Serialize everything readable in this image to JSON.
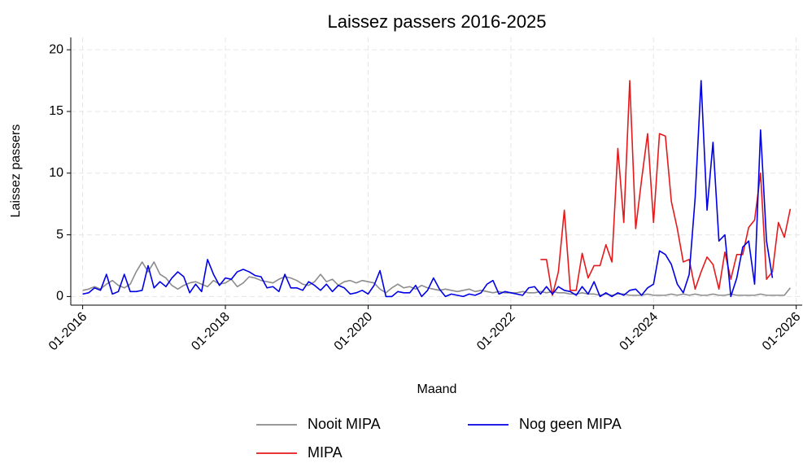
{
  "chart_data": {
    "type": "line",
    "title": "Laissez passers 2016-2025",
    "x_label": "Maand",
    "y_label": "Laissez passers",
    "x": [
      "01-2016",
      "02-2016",
      "03-2016",
      "04-2016",
      "05-2016",
      "06-2016",
      "07-2016",
      "08-2016",
      "09-2016",
      "10-2016",
      "11-2016",
      "12-2016",
      "01-2017",
      "02-2017",
      "03-2017",
      "04-2017",
      "05-2017",
      "06-2017",
      "07-2017",
      "08-2017",
      "09-2017",
      "10-2017",
      "11-2017",
      "12-2017",
      "01-2018",
      "02-2018",
      "03-2018",
      "04-2018",
      "05-2018",
      "06-2018",
      "07-2018",
      "08-2018",
      "09-2018",
      "10-2018",
      "11-2018",
      "12-2018",
      "01-2019",
      "02-2019",
      "03-2019",
      "04-2019",
      "05-2019",
      "06-2019",
      "07-2019",
      "08-2019",
      "09-2019",
      "10-2019",
      "11-2019",
      "12-2019",
      "01-2020",
      "02-2020",
      "03-2020",
      "04-2020",
      "05-2020",
      "06-2020",
      "07-2020",
      "08-2020",
      "09-2020",
      "10-2020",
      "11-2020",
      "12-2020",
      "01-2021",
      "02-2021",
      "03-2021",
      "04-2021",
      "05-2021",
      "06-2021",
      "07-2021",
      "08-2021",
      "09-2021",
      "10-2021",
      "11-2021",
      "12-2021",
      "01-2022",
      "02-2022",
      "03-2022",
      "04-2022",
      "05-2022",
      "06-2022",
      "07-2022",
      "08-2022",
      "09-2022",
      "10-2022",
      "11-2022",
      "12-2022",
      "01-2023",
      "02-2023",
      "03-2023",
      "04-2023",
      "05-2023",
      "06-2023",
      "07-2023",
      "08-2023",
      "09-2023",
      "10-2023",
      "11-2023",
      "12-2023",
      "01-2024",
      "02-2024",
      "03-2024",
      "04-2024",
      "05-2024",
      "06-2024",
      "07-2024",
      "08-2024",
      "09-2024",
      "10-2024",
      "11-2024",
      "12-2024",
      "01-2025",
      "02-2025",
      "03-2025",
      "04-2025",
      "05-2025",
      "06-2025",
      "07-2025",
      "08-2025",
      "09-2025",
      "10-2025",
      "11-2025",
      "12-2025"
    ],
    "series": [
      {
        "name": "Nooit MIPA",
        "color": "#8c8c8c",
        "values": [
          0.5,
          0.6,
          0.8,
          0.6,
          1.0,
          1.3,
          0.9,
          0.7,
          1.0,
          2.0,
          2.8,
          2.0,
          2.8,
          1.8,
          1.5,
          0.9,
          0.6,
          0.9,
          1.1,
          1.2,
          1.0,
          0.8,
          1.3,
          1.0,
          1.1,
          1.4,
          0.8,
          1.1,
          1.6,
          1.5,
          1.3,
          1.2,
          1.1,
          1.4,
          1.6,
          1.5,
          1.3,
          1.0,
          0.9,
          1.2,
          1.8,
          1.2,
          1.4,
          0.9,
          1.2,
          1.3,
          1.1,
          1.3,
          1.2,
          1.1,
          0.6,
          0.3,
          0.7,
          1.0,
          0.7,
          0.8,
          0.6,
          0.9,
          0.7,
          0.6,
          0.5,
          0.6,
          0.5,
          0.4,
          0.5,
          0.6,
          0.4,
          0.5,
          0.4,
          0.3,
          0.4,
          0.3,
          0.3,
          0.3,
          0.4,
          0.3,
          0.3,
          0.4,
          0.3,
          0.4,
          0.3,
          0.3,
          0.2,
          0.2,
          0.3,
          0.2,
          0.2,
          0.1,
          0.2,
          0.1,
          0.2,
          0.2,
          0.1,
          0.1,
          0.1,
          0.2,
          0.1,
          0.1,
          0.1,
          0.2,
          0.1,
          0.2,
          0.1,
          0.2,
          0.1,
          0.1,
          0.2,
          0.1,
          0.1,
          0.2,
          0.1,
          0.1,
          0.1,
          0.1,
          0.2,
          0.1,
          0.1,
          0.1,
          0.1,
          0.7
        ]
      },
      {
        "name": "MIPA",
        "color": "#e41a1c",
        "values": [
          null,
          null,
          null,
          null,
          null,
          null,
          null,
          null,
          null,
          null,
          null,
          null,
          null,
          null,
          null,
          null,
          null,
          null,
          null,
          null,
          null,
          null,
          null,
          null,
          null,
          null,
          null,
          null,
          null,
          null,
          null,
          null,
          null,
          null,
          null,
          null,
          null,
          null,
          null,
          null,
          null,
          null,
          null,
          null,
          null,
          null,
          null,
          null,
          null,
          null,
          null,
          null,
          null,
          null,
          null,
          null,
          null,
          null,
          null,
          null,
          null,
          null,
          null,
          null,
          null,
          null,
          null,
          null,
          null,
          null,
          null,
          null,
          null,
          null,
          null,
          null,
          null,
          3,
          3,
          0.1,
          2,
          7,
          0.5,
          0.5,
          3.5,
          1.5,
          2.5,
          2.5,
          4.2,
          2.8,
          12,
          6,
          17.5,
          5.5,
          9.5,
          13.2,
          6,
          13.2,
          13,
          7.7,
          5.5,
          2.8,
          3,
          0.6,
          2,
          3.2,
          2.6,
          0.6,
          3.6,
          1.4,
          3.4,
          3.4,
          5.6,
          6.2,
          10,
          1.4,
          2,
          6,
          4.8,
          7.1
        ]
      },
      {
        "name": "Nog geen MIPA",
        "color": "#0000e6",
        "values": [
          0.2,
          0.3,
          0.7,
          0.5,
          1.8,
          0.2,
          0.4,
          1.8,
          0.4,
          0.4,
          0.5,
          2.5,
          0.7,
          1.2,
          0.8,
          1.5,
          2.0,
          1.6,
          0.3,
          1.0,
          0.4,
          3.0,
          1.8,
          0.9,
          1.5,
          1.4,
          2.0,
          2.2,
          2.0,
          1.7,
          1.6,
          0.7,
          0.8,
          0.4,
          1.8,
          0.7,
          0.7,
          0.5,
          1.2,
          0.9,
          0.5,
          1.0,
          0.4,
          0.9,
          0.7,
          0.2,
          0.3,
          0.5,
          0.2,
          0.9,
          2.1,
          0.0,
          0.0,
          0.4,
          0.3,
          0.3,
          0.9,
          0.0,
          0.5,
          1.5,
          0.6,
          0.0,
          0.2,
          0.1,
          0.0,
          0.2,
          0.1,
          0.3,
          1.0,
          1.3,
          0.2,
          0.4,
          0.3,
          0.2,
          0.1,
          0.7,
          0.8,
          0.2,
          0.8,
          0.2,
          0.8,
          0.5,
          0.4,
          0.1,
          0.8,
          0.2,
          1.2,
          0.0,
          0.3,
          0.0,
          0.3,
          0.1,
          0.5,
          0.6,
          0.1,
          0.7,
          1.0,
          3.7,
          3.4,
          2.6,
          1.0,
          0.3,
          1.8,
          8,
          17.5,
          7,
          12.5,
          4.5,
          5,
          0,
          1.5,
          4,
          4.5,
          1,
          13.5,
          4.5,
          1.5,
          null,
          null,
          null
        ]
      }
    ],
    "xlim": [
      "11-2015",
      "02-2026"
    ],
    "xticks": [
      "01-2016",
      "01-2018",
      "01-2020",
      "01-2022",
      "01-2024",
      "01-2026"
    ],
    "ylim": [
      -0.7,
      21
    ],
    "yticks": [
      0,
      5,
      10,
      15,
      20
    ],
    "grid": true,
    "legend": "bottom"
  }
}
